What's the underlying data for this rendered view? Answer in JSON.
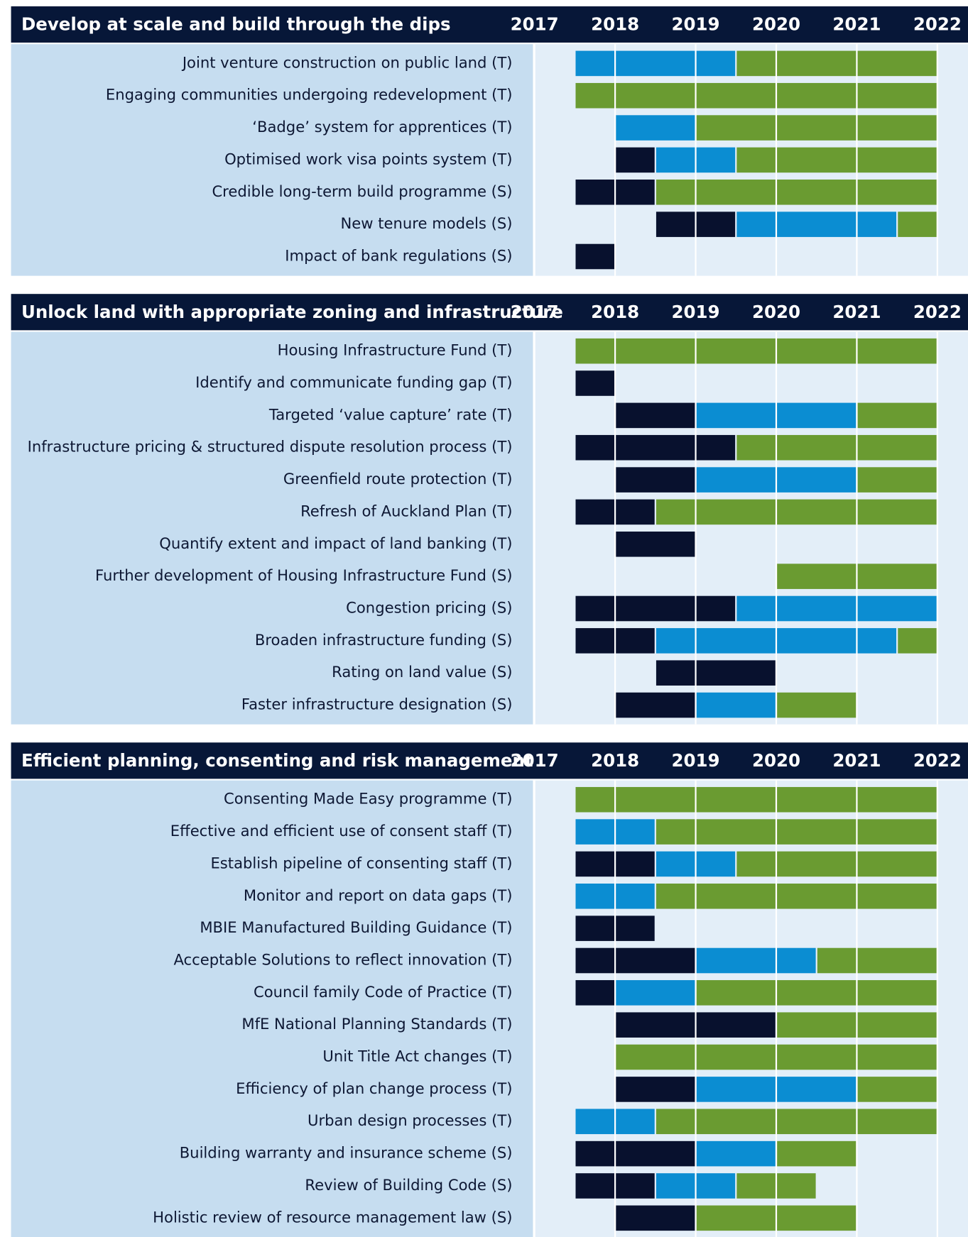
{
  "chart_data": [
    {
      "type": "gantt",
      "title": "Develop at scale and build through the dips",
      "xlim": [
        2017,
        2022.38
      ],
      "xticks": [
        2017,
        2018,
        2019,
        2020,
        2021,
        2022
      ],
      "tasks": [
        {
          "label": "Joint venture construction on public land (T)",
          "segments": [
            {
              "start": 2017.5,
              "end": 2019.5,
              "color": "#0b8dd2"
            },
            {
              "start": 2019.5,
              "end": 2022,
              "color": "#6a9b31"
            }
          ]
        },
        {
          "label": "Engaging communities undergoing redevelopment (T)",
          "segments": [
            {
              "start": 2017.5,
              "end": 2022,
              "color": "#6a9b31"
            }
          ]
        },
        {
          "label": "‘Badge’ system for apprentices (T)",
          "segments": [
            {
              "start": 2018,
              "end": 2019,
              "color": "#0b8dd2"
            },
            {
              "start": 2019,
              "end": 2022,
              "color": "#6a9b31"
            }
          ]
        },
        {
          "label": "Optimised work visa points system (T)",
          "segments": [
            {
              "start": 2018,
              "end": 2018.5,
              "color": "#08112e"
            },
            {
              "start": 2018.5,
              "end": 2019.5,
              "color": "#0b8dd2"
            },
            {
              "start": 2019.5,
              "end": 2022,
              "color": "#6a9b31"
            }
          ]
        },
        {
          "label": "Credible long-term build programme (S)",
          "segments": [
            {
              "start": 2017.5,
              "end": 2018.5,
              "color": "#08112e"
            },
            {
              "start": 2018.5,
              "end": 2022,
              "color": "#6a9b31"
            }
          ]
        },
        {
          "label": "New tenure models (S)",
          "segments": [
            {
              "start": 2018.5,
              "end": 2019.5,
              "color": "#08112e"
            },
            {
              "start": 2019.5,
              "end": 2021.5,
              "color": "#0b8dd2"
            },
            {
              "start": 2021.5,
              "end": 2022,
              "color": "#6a9b31"
            }
          ]
        },
        {
          "label": "Impact of bank regulations (S)",
          "segments": [
            {
              "start": 2017.5,
              "end": 2018,
              "color": "#08112e"
            }
          ]
        }
      ]
    },
    {
      "type": "gantt",
      "title": "Unlock land with appropriate zoning and infrastructure",
      "xlim": [
        2017,
        2022.38
      ],
      "xticks": [
        2017,
        2018,
        2019,
        2020,
        2021,
        2022
      ],
      "tasks": [
        {
          "label": "Housing Infrastructure Fund (T)",
          "segments": [
            {
              "start": 2017.5,
              "end": 2022,
              "color": "#6a9b31"
            }
          ]
        },
        {
          "label": "Identify and communicate funding gap (T)",
          "segments": [
            {
              "start": 2017.5,
              "end": 2018,
              "color": "#08112e"
            }
          ]
        },
        {
          "label": "Targeted ‘value capture’ rate (T)",
          "segments": [
            {
              "start": 2018,
              "end": 2019,
              "color": "#08112e"
            },
            {
              "start": 2019,
              "end": 2021,
              "color": "#0b8dd2"
            },
            {
              "start": 2021,
              "end": 2022,
              "color": "#6a9b31"
            }
          ]
        },
        {
          "label": "Infrastructure pricing & structured dispute resolution process (T)",
          "segments": [
            {
              "start": 2017.5,
              "end": 2019.5,
              "color": "#08112e"
            },
            {
              "start": 2019.5,
              "end": 2022,
              "color": "#6a9b31"
            }
          ]
        },
        {
          "label": "Greenfield route protection (T)",
          "segments": [
            {
              "start": 2018,
              "end": 2019,
              "color": "#08112e"
            },
            {
              "start": 2019,
              "end": 2021,
              "color": "#0b8dd2"
            },
            {
              "start": 2021,
              "end": 2022,
              "color": "#6a9b31"
            }
          ]
        },
        {
          "label": "Refresh of Auckland Plan (T)",
          "segments": [
            {
              "start": 2017.5,
              "end": 2018.5,
              "color": "#08112e"
            },
            {
              "start": 2018.5,
              "end": 2022,
              "color": "#6a9b31"
            }
          ]
        },
        {
          "label": "Quantify extent and impact of land banking (T)",
          "segments": [
            {
              "start": 2018,
              "end": 2019,
              "color": "#08112e"
            }
          ]
        },
        {
          "label": "Further development of Housing Infrastructure Fund (S)",
          "segments": [
            {
              "start": 2020,
              "end": 2022,
              "color": "#6a9b31"
            }
          ]
        },
        {
          "label": "Congestion pricing (S)",
          "segments": [
            {
              "start": 2017.5,
              "end": 2019.5,
              "color": "#08112e"
            },
            {
              "start": 2019.5,
              "end": 2022,
              "color": "#0b8dd2"
            }
          ]
        },
        {
          "label": "Broaden infrastructure funding (S)",
          "segments": [
            {
              "start": 2017.5,
              "end": 2018.5,
              "color": "#08112e"
            },
            {
              "start": 2018.5,
              "end": 2021.5,
              "color": "#0b8dd2"
            },
            {
              "start": 2021.5,
              "end": 2022,
              "color": "#6a9b31"
            }
          ]
        },
        {
          "label": "Rating on land value (S)",
          "segments": [
            {
              "start": 2018.5,
              "end": 2020,
              "color": "#08112e"
            }
          ]
        },
        {
          "label": "Faster infrastructure designation (S)",
          "segments": [
            {
              "start": 2018,
              "end": 2019,
              "color": "#08112e"
            },
            {
              "start": 2019,
              "end": 2020,
              "color": "#0b8dd2"
            },
            {
              "start": 2020,
              "end": 2021,
              "color": "#6a9b31"
            }
          ]
        }
      ]
    },
    {
      "type": "gantt",
      "title": "Efficient planning, consenting and risk management",
      "xlim": [
        2017,
        2022.38
      ],
      "xticks": [
        2017,
        2018,
        2019,
        2020,
        2021,
        2022
      ],
      "tasks": [
        {
          "label": "Consenting Made Easy programme (T)",
          "segments": [
            {
              "start": 2017.5,
              "end": 2022,
              "color": "#6a9b31"
            }
          ]
        },
        {
          "label": "Effective and efficient use of consent staff (T)",
          "segments": [
            {
              "start": 2017.5,
              "end": 2018.5,
              "color": "#0b8dd2"
            },
            {
              "start": 2018.5,
              "end": 2022,
              "color": "#6a9b31"
            }
          ]
        },
        {
          "label": "Establish pipeline of consenting staff (T)",
          "segments": [
            {
              "start": 2017.5,
              "end": 2018.5,
              "color": "#08112e"
            },
            {
              "start": 2018.5,
              "end": 2019.5,
              "color": "#0b8dd2"
            },
            {
              "start": 2019.5,
              "end": 2022,
              "color": "#6a9b31"
            }
          ]
        },
        {
          "label": "Monitor and report on data gaps (T)",
          "segments": [
            {
              "start": 2017.5,
              "end": 2018.5,
              "color": "#0b8dd2"
            },
            {
              "start": 2018.5,
              "end": 2022,
              "color": "#6a9b31"
            }
          ]
        },
        {
          "label": "MBIE Manufactured Building Guidance (T)",
          "segments": [
            {
              "start": 2017.5,
              "end": 2018.5,
              "color": "#08112e"
            }
          ]
        },
        {
          "label": "Acceptable Solutions to reflect innovation (T)",
          "segments": [
            {
              "start": 2017.5,
              "end": 2019,
              "color": "#08112e"
            },
            {
              "start": 2019,
              "end": 2020.5,
              "color": "#0b8dd2"
            },
            {
              "start": 2020.5,
              "end": 2022,
              "color": "#6a9b31"
            }
          ]
        },
        {
          "label": "Council family Code of Practice (T)",
          "segments": [
            {
              "start": 2017.5,
              "end": 2018,
              "color": "#08112e"
            },
            {
              "start": 2018,
              "end": 2019,
              "color": "#0b8dd2"
            },
            {
              "start": 2019,
              "end": 2022,
              "color": "#6a9b31"
            }
          ]
        },
        {
          "label": "MfE National Planning Standards (T)",
          "segments": [
            {
              "start": 2018,
              "end": 2020,
              "color": "#08112e"
            },
            {
              "start": 2020,
              "end": 2022,
              "color": "#6a9b31"
            }
          ]
        },
        {
          "label": "Unit Title Act changes (T)",
          "segments": [
            {
              "start": 2018,
              "end": 2022,
              "color": "#6a9b31"
            }
          ]
        },
        {
          "label": "Efficiency of plan change process (T)",
          "segments": [
            {
              "start": 2018,
              "end": 2019,
              "color": "#08112e"
            },
            {
              "start": 2019,
              "end": 2021,
              "color": "#0b8dd2"
            },
            {
              "start": 2021,
              "end": 2022,
              "color": "#6a9b31"
            }
          ]
        },
        {
          "label": "Urban design processes (T)",
          "segments": [
            {
              "start": 2017.5,
              "end": 2018.5,
              "color": "#0b8dd2"
            },
            {
              "start": 2018.5,
              "end": 2022,
              "color": "#6a9b31"
            }
          ]
        },
        {
          "label": "Building warranty and insurance scheme (S)",
          "segments": [
            {
              "start": 2017.5,
              "end": 2019,
              "color": "#08112e"
            },
            {
              "start": 2019,
              "end": 2020,
              "color": "#0b8dd2"
            },
            {
              "start": 2020,
              "end": 2021,
              "color": "#6a9b31"
            }
          ]
        },
        {
          "label": "Review of Building Code (S)",
          "segments": [
            {
              "start": 2017.5,
              "end": 2018.5,
              "color": "#08112e"
            },
            {
              "start": 2018.5,
              "end": 2019.5,
              "color": "#0b8dd2"
            },
            {
              "start": 2019.5,
              "end": 2020.5,
              "color": "#6a9b31"
            }
          ]
        },
        {
          "label": "Holistic review of resource management law (S)",
          "segments": [
            {
              "start": 2018,
              "end": 2019,
              "color": "#08112e"
            },
            {
              "start": 2019,
              "end": 2021,
              "color": "#6a9b31"
            }
          ]
        }
      ]
    }
  ]
}
